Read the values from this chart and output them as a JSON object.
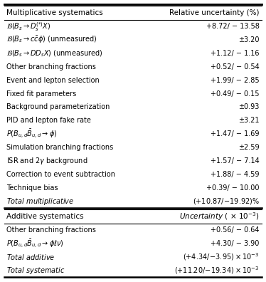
{
  "title_top": "Multiplicative systematics",
  "title_top_right": "Relative uncertainty (%)",
  "title_bottom": "Additive systematics",
  "title_bottom_right": "Uncertainty ( $\\times$ 10$^{-3}$)",
  "mult_rows": [
    [
      "$\\mathcal{B}(B_s \\rightarrow D_s^{(*)}X)$",
      "+8.72/ − 13.58"
    ],
    [
      "$\\mathcal{B}(B_s \\rightarrow c\\bar{c}\\phi)$ (unmeasured)",
      "±3.20"
    ],
    [
      "$\\mathcal{B}(B_s \\rightarrow DD_sX)$ (unmeasured)",
      "+1.12/ − 1.16"
    ],
    [
      "Other branching fractions",
      "+0.52/ − 0.54"
    ],
    [
      "Event and lepton selection",
      "+1.99/ − 2.85"
    ],
    [
      "Fixed fit parameters",
      "+0.49/ − 0.15"
    ],
    [
      "Background parameterization",
      "±0.93"
    ],
    [
      "PID and lepton fake rate",
      "±3.21"
    ],
    [
      "$P(B_{u,d}\\bar{B}_{u,d} \\rightarrow \\phi)$",
      "+1.47/ − 1.69"
    ],
    [
      "Simulation branching fractions",
      "±2.59"
    ],
    [
      "ISR and 2$\\gamma$ background",
      "+1.57/ − 7.14"
    ],
    [
      "Correction to event subtraction",
      "+1.88/ − 4.59"
    ],
    [
      "Technique bias",
      "+0.39/ − 10.00"
    ],
    [
      "Total multiplicative",
      "(+10.87/ − 19.92)%"
    ]
  ],
  "add_rows": [
    [
      "Other branching fractions",
      "+0.56/ − 0.64"
    ],
    [
      "$P(B_{u,d}\\bar{B}_{u,d} \\rightarrow \\phi\\ell\\nu)$",
      "+4.30/ − 3.90"
    ],
    [
      "Total additive",
      "(+4.34/ − 3.95) × 10$^{-3}$"
    ],
    [
      "Total systematic",
      "(+11.20/ − 19.34) × 10$^{-3}$"
    ]
  ]
}
